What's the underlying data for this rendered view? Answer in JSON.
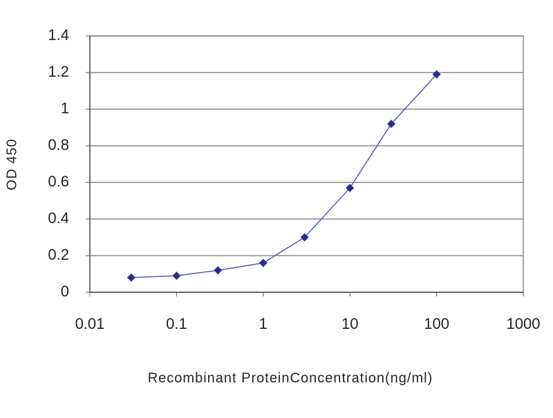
{
  "chart_data": {
    "type": "line",
    "x_label": "Recombinant ProteinConcentration(ng/ml)",
    "y_label": "OD 450",
    "x_scale": "log",
    "grid": true,
    "series": [
      {
        "color": "#2b2b8f",
        "x": [
          0.03,
          0.1,
          0.3,
          1,
          3,
          10,
          30,
          100
        ],
        "values": [
          0.08,
          0.09,
          0.12,
          0.16,
          0.3,
          0.57,
          0.92,
          1.19
        ]
      }
    ],
    "xlim": [
      0.01,
      1000
    ],
    "xticks": [
      0.01,
      0.1,
      1,
      10,
      100,
      1000
    ],
    "ylim": [
      0,
      1.4
    ],
    "yticks": [
      0,
      0.2,
      0.4,
      0.6,
      0.8,
      1,
      1.2,
      1.4
    ]
  }
}
